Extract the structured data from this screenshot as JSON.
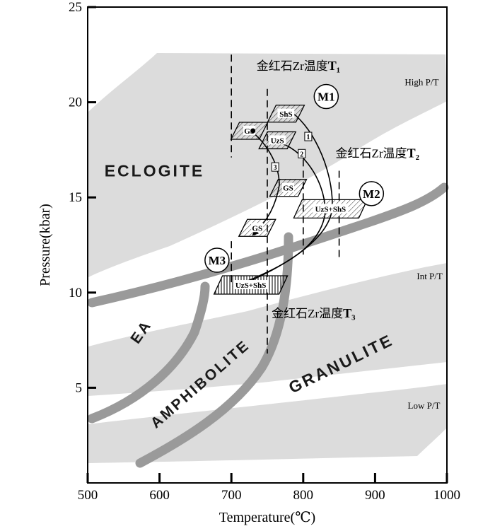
{
  "chart_data": {
    "type": "scatter",
    "xlabel": "Temperature(℃)",
    "ylabel": "Pressure(kbar)",
    "xlim": [
      500,
      1000
    ],
    "ylim": [
      0,
      25
    ],
    "xticks": [
      "500",
      "600",
      "700",
      "800",
      "900",
      "1000"
    ],
    "yticks": [
      "5",
      "10",
      "15",
      "20",
      "25"
    ],
    "facies_labels": [
      {
        "text": "ECLOGITE",
        "x": 593,
        "y": 16.1,
        "size": 23,
        "rot": 0
      },
      {
        "text": "EA",
        "x": 580,
        "y": 7.8,
        "size": 21,
        "rot": -55
      },
      {
        "text": "AMPHIBOLITE",
        "x": 661,
        "y": 5.0,
        "size": 21,
        "rot": -41
      },
      {
        "text": "GRANULITE",
        "x": 856,
        "y": 6.0,
        "size": 23,
        "rot": -26
      }
    ],
    "pt_type_labels": [
      {
        "text": "High P/T",
        "x": 965,
        "y": 20.9
      },
      {
        "text": "Int P/T",
        "x": 976,
        "y": 10.7
      },
      {
        "text": "Low P/T",
        "x": 968,
        "y": 3.9
      }
    ],
    "temperature_lines": [
      {
        "x": 700,
        "ymin": 17.1,
        "ymax": 22.5,
        "label": "金红石Zr温度",
        "label_sub": "T₁",
        "label_x": 735,
        "label_y": 21.7
      },
      {
        "x": 750,
        "ymin": 6.8,
        "ymax": 20.7,
        "label": "金红石Zr温度",
        "label_sub": "T₃",
        "label_x": 756,
        "label_y": 8.7
      },
      {
        "x": 700,
        "ymin": 10.5,
        "ymax": 12.7,
        "label": "",
        "label_sub": "",
        "label_x": 0,
        "label_y": 0
      },
      {
        "x": 800,
        "ymin": 12.0,
        "ymax": 17.0,
        "label": "金红石Zr温度",
        "label_sub": "T₂",
        "label_x": 845,
        "label_y": 17.1
      },
      {
        "x": 850,
        "ymin": 11.7,
        "ymax": 16.4,
        "label": "",
        "label_sub": "",
        "label_x": 0,
        "label_y": 0
      }
    ],
    "boxes": [
      {
        "label": "ShS",
        "x": 776,
        "y": 19.4
      },
      {
        "label": "GS",
        "x": 725,
        "y": 18.5
      },
      {
        "label": "UzS",
        "x": 764,
        "y": 18.0
      },
      {
        "label": "GS",
        "x": 779,
        "y": 15.5
      },
      {
        "label": "UzS+ShS",
        "x": 838,
        "y": 14.4
      },
      {
        "label": "GS",
        "x": 736,
        "y": 13.4
      },
      {
        "label": "UzS+ShS",
        "x": 727,
        "y": 10.4
      }
    ],
    "path_markers": [
      {
        "label": "1",
        "x": 807,
        "y": 18.2
      },
      {
        "label": "2",
        "x": 798,
        "y": 17.3
      },
      {
        "label": "3",
        "x": 761,
        "y": 16.6
      }
    ],
    "stage_labels": [
      {
        "label": "M1",
        "x": 832,
        "y": 20.3
      },
      {
        "label": "M2",
        "x": 895,
        "y": 15.2
      },
      {
        "label": "M3",
        "x": 680,
        "y": 11.7
      }
    ],
    "colors": {
      "field": "#dcdcdc",
      "band": "#9a9a9a",
      "line": "#000000"
    }
  }
}
